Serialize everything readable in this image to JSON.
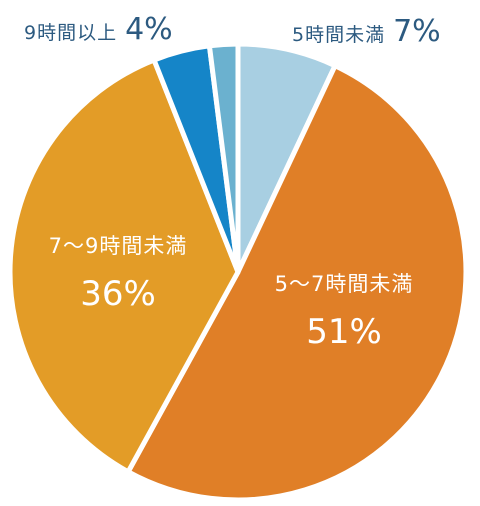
{
  "chart_data": {
    "type": "pie",
    "categories": [
      "5時間未満",
      "5〜7時間未満",
      "7〜9時間未満",
      "9時間以上",
      ""
    ],
    "values": [
      7,
      51,
      36,
      4,
      2
    ],
    "slice_colors": [
      "#a8cfe2",
      "#e07f27",
      "#e39c27",
      "#1585c8",
      "#6bb1cf"
    ],
    "labels": {
      "lt5": {
        "category": "5時間未満",
        "value": "7%"
      },
      "five_to_seven": {
        "category": "5〜7時間未満",
        "value": "51%"
      },
      "seven_to_nine": {
        "category": "7〜9時間未満",
        "value": "36%"
      },
      "nine_plus": {
        "category": "9時間以上",
        "value": "4%"
      }
    },
    "label_colors": {
      "outside": "#2c5a80",
      "inside": "#ffffff"
    },
    "title": "",
    "legend": "none"
  }
}
